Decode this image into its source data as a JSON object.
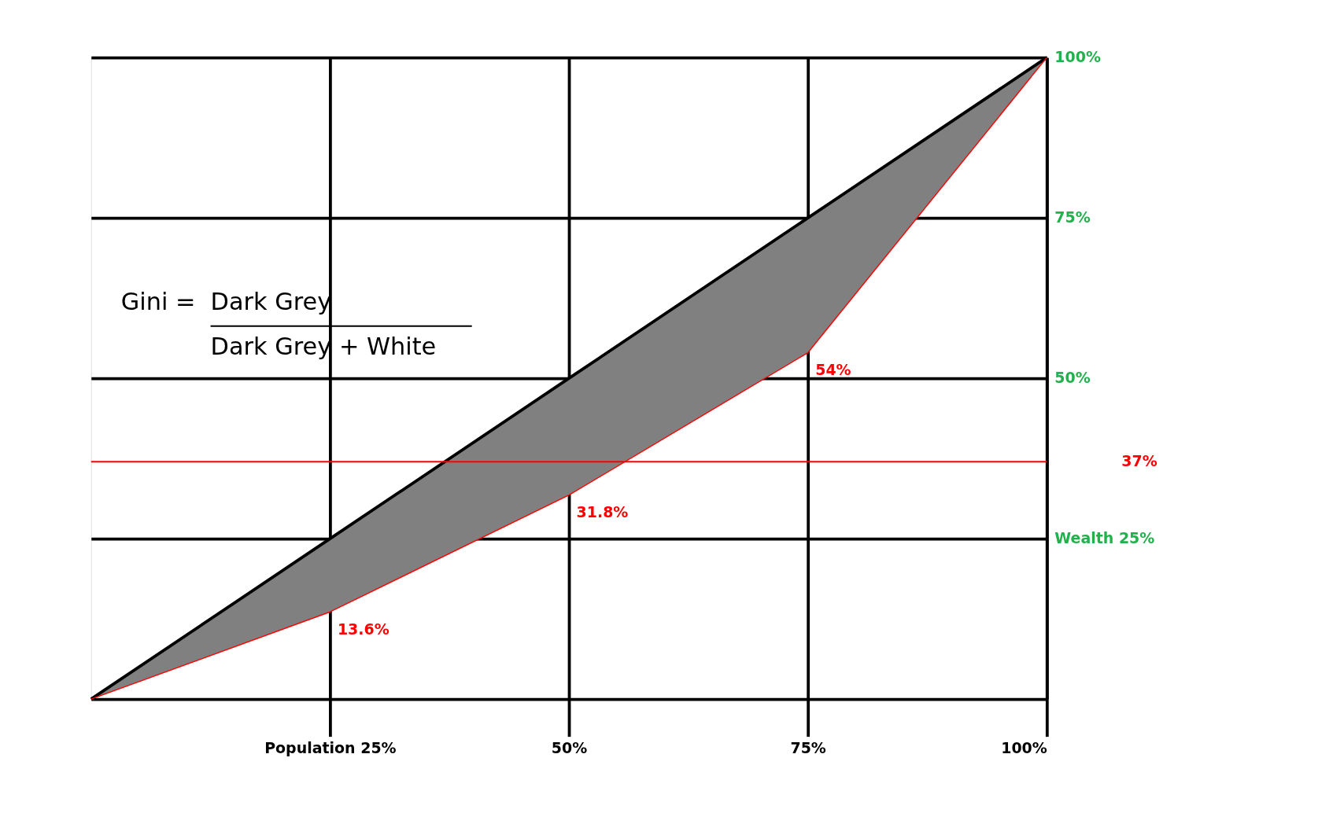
{
  "chart_data": {
    "type": "line",
    "x": [
      0,
      25,
      50,
      75,
      100
    ],
    "xlim": [
      0,
      100
    ],
    "ylim": [
      0,
      100
    ],
    "xticks": [
      {
        "value": 25,
        "label": "Population 25%"
      },
      {
        "value": 50,
        "label": "50%"
      },
      {
        "value": 75,
        "label": "75%"
      },
      {
        "value": 100,
        "label": "100%"
      }
    ],
    "yticks": [
      {
        "value": 25,
        "label": "Wealth 25%"
      },
      {
        "value": 50,
        "label": "50%"
      },
      {
        "value": 75,
        "label": "75%"
      },
      {
        "value": 100,
        "label": "100%"
      }
    ],
    "series": [
      {
        "color": "#000000",
        "values": [
          0,
          25,
          50,
          75,
          100
        ]
      },
      {
        "color": "#ff0000",
        "values": [
          0,
          13.6,
          31.8,
          54,
          100
        ],
        "lower": [
          0,
          13.6,
          31.8,
          54,
          100
        ],
        "upper": [
          0,
          25,
          50,
          75,
          100
        ],
        "value_labels": [
          null,
          "13.6%",
          "31.8%",
          "54%",
          null
        ]
      }
    ],
    "ref_lines": [
      {
        "axis": "y",
        "value": 37,
        "label": "37%",
        "color": "#ff0000"
      }
    ],
    "annotations": [
      "Gini =",
      "Dark Grey",
      "Dark Grey + White"
    ],
    "grid": true,
    "marker": "none"
  }
}
